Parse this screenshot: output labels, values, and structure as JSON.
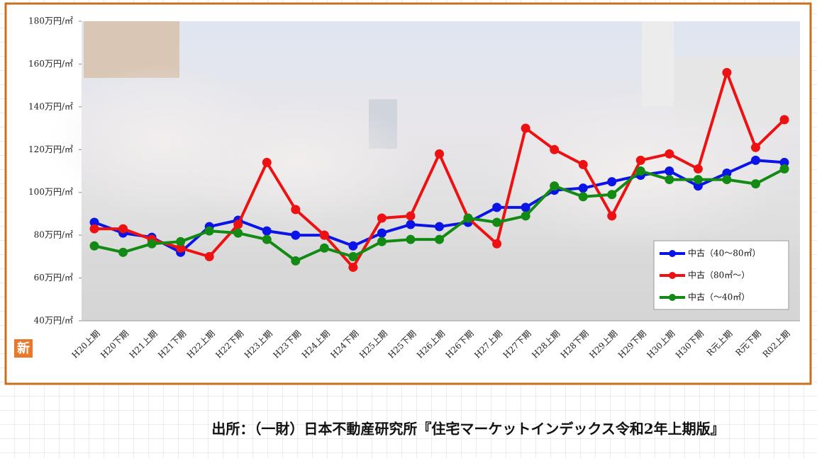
{
  "chart_data": {
    "type": "line",
    "categories": [
      "H20上期",
      "H20下期",
      "H21上期",
      "H21下期",
      "H22上期",
      "H22下期",
      "H23上期",
      "H23下期",
      "H24上期",
      "H24下期",
      "H25上期",
      "H25下期",
      "H26上期",
      "H26下期",
      "H27上期",
      "H27下期",
      "H28上期",
      "H28下期",
      "H29上期",
      "H29下期",
      "H30上期",
      "H30下期",
      "R元上期",
      "R元下期",
      "R02上期"
    ],
    "series": [
      {
        "name": "中古（40～80㎡）",
        "color": "#0a14e6",
        "values": [
          86,
          81,
          79,
          72,
          84,
          87,
          82,
          80,
          80,
          75,
          81,
          85,
          84,
          86,
          93,
          93,
          101,
          102,
          105,
          108,
          110,
          103,
          109,
          115,
          114
        ]
      },
      {
        "name": "中古（80㎡～）",
        "color": "#ee1111",
        "values": [
          83,
          83,
          78,
          74,
          70,
          85,
          114,
          92,
          80,
          65,
          88,
          89,
          118,
          88,
          76,
          130,
          120,
          113,
          89,
          115,
          118,
          111,
          156,
          121,
          134
        ]
      },
      {
        "name": "中古（～40㎡）",
        "color": "#138a13",
        "values": [
          75,
          72,
          76,
          77,
          82,
          81,
          78,
          68,
          74,
          70,
          77,
          78,
          78,
          88,
          86,
          89,
          103,
          98,
          99,
          110,
          106,
          106,
          106,
          104,
          111
        ]
      }
    ],
    "ylim": [
      40,
      180
    ],
    "yticks": [
      {
        "value": 40,
        "label": "40万円/㎡"
      },
      {
        "value": 60,
        "label": "60万円/㎡"
      },
      {
        "value": 80,
        "label": "80万円/㎡"
      },
      {
        "value": 100,
        "label": "100万円/㎡"
      },
      {
        "value": 120,
        "label": "120万円/㎡"
      },
      {
        "value": 140,
        "label": "140万円/㎡"
      },
      {
        "value": 160,
        "label": "160万円/㎡"
      },
      {
        "value": 180,
        "label": "180万円/㎡"
      }
    ],
    "legend": "lower right"
  },
  "badge": "新",
  "source": "出所：（一財）日本不動産研究所『住宅マーケットインデックス令和2年上期版』"
}
